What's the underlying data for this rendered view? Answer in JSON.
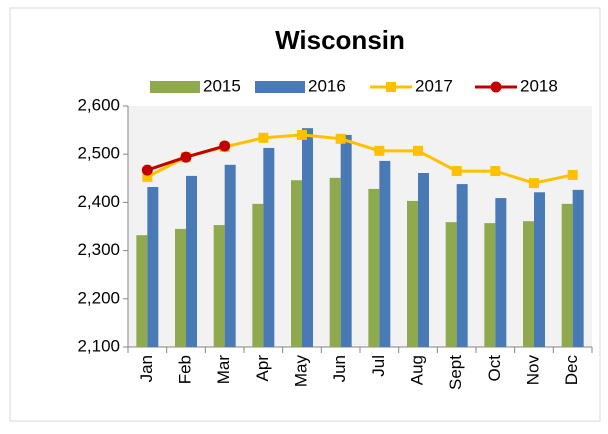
{
  "chart_data": {
    "type": "bar",
    "title": "Wisconsin",
    "categories": [
      "Jan",
      "Feb",
      "Mar",
      "Apr",
      "May",
      "Jun",
      "Jul",
      "Aug",
      "Sept",
      "Oct",
      "Nov",
      "Dec"
    ],
    "series": [
      {
        "name": "2015",
        "type": "bar",
        "color": "#8faa4e",
        "values": [
          2332,
          2345,
          2353,
          2397,
          2446,
          2451,
          2428,
          2403,
          2359,
          2357,
          2361,
          2397
        ]
      },
      {
        "name": "2016",
        "type": "bar",
        "color": "#4a7ab5",
        "values": [
          2432,
          2455,
          2478,
          2513,
          2554,
          2540,
          2486,
          2461,
          2438,
          2409,
          2421,
          2426
        ]
      },
      {
        "name": "2017",
        "type": "line",
        "marker": "square",
        "color": "#ffc000",
        "values": [
          2453,
          2494,
          2515,
          2534,
          2540,
          2532,
          2507,
          2507,
          2465,
          2465,
          2440,
          2457
        ]
      },
      {
        "name": "2018",
        "type": "line",
        "marker": "circle",
        "color": "#c00000",
        "values": [
          2467,
          2494,
          2517,
          null,
          null,
          null,
          null,
          null,
          null,
          null,
          null,
          null
        ]
      }
    ],
    "ylim": [
      2100,
      2600
    ],
    "yticks": [
      {
        "value": 2100,
        "label": "2,100"
      },
      {
        "value": 2200,
        "label": "2,200"
      },
      {
        "value": 2300,
        "label": "2,300"
      },
      {
        "value": 2400,
        "label": "2,400"
      },
      {
        "value": 2500,
        "label": "2,500"
      },
      {
        "value": 2600,
        "label": "2,600"
      }
    ],
    "grid": false,
    "legend": "top"
  }
}
